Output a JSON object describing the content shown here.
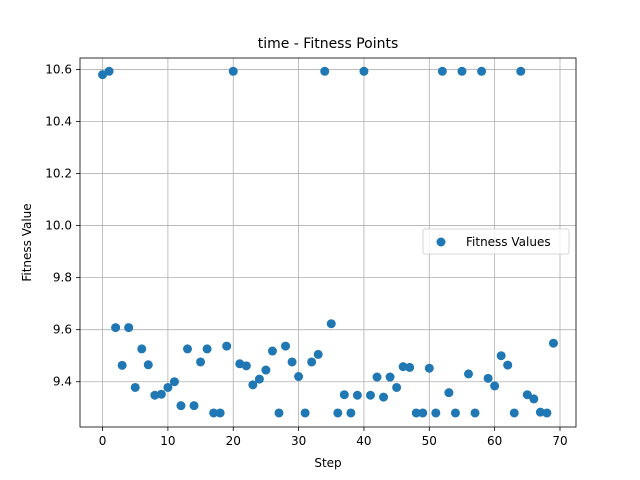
{
  "chart_data": {
    "type": "scatter",
    "title": "time - Fitness Points",
    "xlabel": "Step",
    "ylabel": "Fitness Value",
    "xlim": [
      -3.45,
      72.45
    ],
    "ylim": [
      9.226,
      10.644
    ],
    "xticks": [
      0,
      10,
      20,
      30,
      40,
      50,
      60,
      70
    ],
    "yticks": [
      9.4,
      9.6,
      9.8,
      10.0,
      10.2,
      10.4,
      10.6
    ],
    "ytick_labels": [
      "9.4",
      "9.6",
      "9.8",
      "10.0",
      "10.2",
      "10.4",
      "10.6"
    ],
    "grid": true,
    "legend_position": "center-right",
    "series": [
      {
        "name": "Fitness Values",
        "color": "#1f77b4",
        "x": [
          0,
          1,
          2,
          3,
          4,
          5,
          6,
          7,
          8,
          9,
          10,
          11,
          12,
          13,
          14,
          15,
          16,
          17,
          18,
          19,
          20,
          21,
          22,
          23,
          24,
          25,
          26,
          27,
          28,
          29,
          30,
          31,
          32,
          33,
          34,
          35,
          36,
          37,
          38,
          39,
          40,
          41,
          42,
          43,
          44,
          45,
          46,
          47,
          48,
          49,
          50,
          51,
          52,
          53,
          54,
          55,
          56,
          57,
          58,
          59,
          60,
          61,
          62,
          63,
          64,
          65,
          66,
          67,
          68,
          69
        ],
        "y": [
          10.58,
          10.593,
          9.608,
          9.463,
          9.608,
          9.378,
          9.526,
          9.465,
          9.348,
          9.352,
          9.378,
          9.4,
          9.308,
          9.526,
          9.308,
          9.476,
          9.526,
          9.28,
          9.28,
          9.537,
          10.593,
          9.469,
          9.461,
          9.388,
          9.41,
          9.445,
          9.518,
          9.28,
          9.537,
          9.476,
          9.42,
          9.28,
          9.476,
          9.505,
          10.593,
          9.623,
          9.28,
          9.35,
          9.28,
          9.348,
          10.593,
          9.348,
          9.418,
          9.341,
          9.418,
          9.378,
          9.458,
          9.455,
          9.28,
          9.28,
          9.452,
          9.28,
          10.593,
          9.358,
          9.28,
          10.593,
          9.43,
          9.28,
          10.593,
          9.413,
          9.384,
          9.5,
          9.464,
          9.28,
          10.593,
          9.35,
          9.334,
          9.283,
          9.28,
          9.548
        ]
      }
    ]
  }
}
